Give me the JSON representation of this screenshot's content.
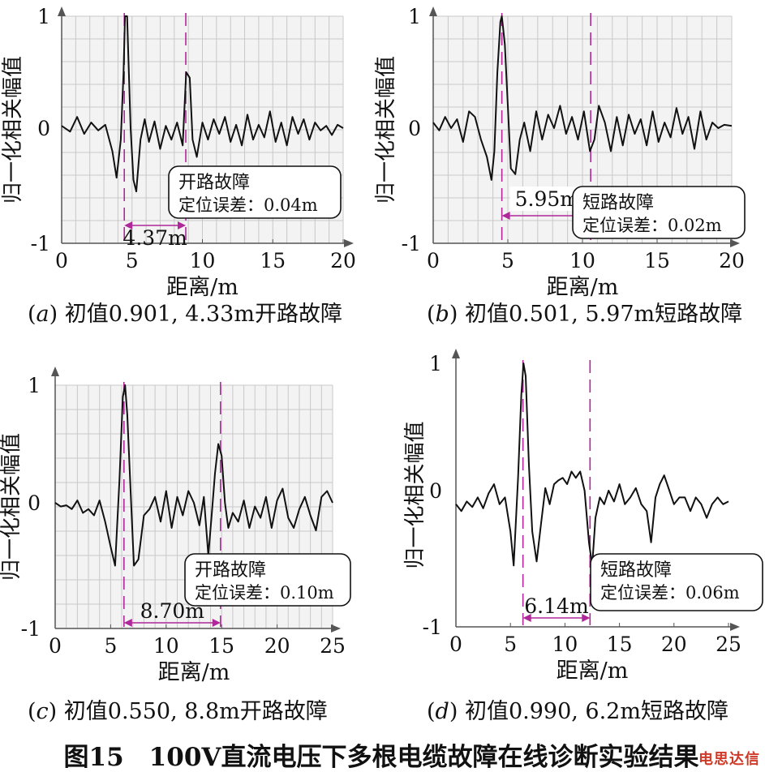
{
  "figure_caption": "图15　100V直流电压下多根电缆故障在线诊断实验结果",
  "watermark": "电思达信",
  "colors": {
    "grid": "#c8c8c8",
    "panel_bg": "#f3f3f3",
    "signal": "#111111",
    "marker": "#b0279a",
    "axis": "#555555"
  },
  "chart_data": [
    {
      "type": "line",
      "panel": "a",
      "caption_letter": "a",
      "caption_text": " 初值0.901, 4.33m开路故障",
      "ylabel": "归一化相关幅值",
      "xlabel": "距离/m",
      "xlim": [
        0,
        20
      ],
      "ylim": [
        -1,
        1
      ],
      "xticks": [
        0,
        5,
        10,
        15,
        20
      ],
      "yticks": [
        1,
        0,
        -1
      ],
      "grid": true,
      "markers": [
        4.45,
        8.82
      ],
      "distance_label": "4.37m",
      "distance_arrow": [
        4.45,
        8.82
      ],
      "annotation": {
        "title": "开路故障",
        "detail": "定位误差：0.04m"
      },
      "series": [
        {
          "x": [
            0,
            0.6,
            1.1,
            1.6,
            2.1,
            2.6,
            3.1,
            3.6,
            3.9,
            4.2,
            4.4,
            4.5,
            4.65,
            4.75,
            4.9,
            5.1,
            5.3,
            5.6,
            5.9,
            6.2,
            6.6,
            7.0,
            7.4,
            7.8,
            8.2,
            8.6,
            8.85,
            9.1,
            9.3,
            9.6,
            10.0,
            10.4,
            10.8,
            11.2,
            11.6,
            12.0,
            12.4,
            12.8,
            13.2,
            13.6,
            14.0,
            14.4,
            14.8,
            15.2,
            15.6,
            16.0,
            16.4,
            16.8,
            17.2,
            17.6,
            18.0,
            18.4,
            18.8,
            19.2,
            19.6,
            20.0
          ],
          "y": [
            0.02,
            -0.03,
            0.1,
            -0.05,
            0.05,
            -0.02,
            0.03,
            -0.2,
            -0.43,
            -0.1,
            0.5,
            1.0,
            1.0,
            0.6,
            0.0,
            -0.45,
            -0.55,
            -0.1,
            0.08,
            -0.12,
            0.06,
            -0.18,
            0.02,
            -0.1,
            0.05,
            -0.15,
            0.5,
            0.45,
            -0.1,
            -0.25,
            0.05,
            -0.1,
            0.08,
            -0.05,
            0.1,
            -0.12,
            0.03,
            -0.15,
            0.12,
            -0.1,
            0.03,
            -0.08,
            0.15,
            -0.12,
            0.05,
            -0.15,
            0.1,
            -0.05,
            0.08,
            -0.1,
            0.05,
            -0.02,
            0.02,
            -0.06,
            0.03,
            0.0
          ]
        }
      ]
    },
    {
      "type": "line",
      "panel": "b",
      "caption_letter": "b",
      "caption_text": " 初值0.501, 5.97m短路故障",
      "ylabel": "归一化相关幅值",
      "xlabel": "距离/m",
      "xlim": [
        0,
        20
      ],
      "ylim": [
        -1,
        1
      ],
      "xticks": [
        0,
        5,
        10,
        15,
        20
      ],
      "yticks": [
        1,
        0,
        -1
      ],
      "grid": true,
      "markers": [
        4.6,
        10.55
      ],
      "distance_label": "5.95m",
      "distance_arrow": [
        4.6,
        10.55
      ],
      "annotation": {
        "title": "短路故障",
        "detail": "定位误差：0.02m"
      },
      "series": [
        {
          "x": [
            0,
            0.4,
            0.8,
            1.2,
            1.6,
            2.0,
            2.4,
            2.8,
            3.2,
            3.6,
            3.9,
            4.1,
            4.3,
            4.5,
            4.6,
            4.8,
            5.0,
            5.2,
            5.5,
            5.8,
            6.1,
            6.5,
            6.9,
            7.3,
            7.7,
            8.1,
            8.5,
            8.9,
            9.3,
            9.7,
            10.1,
            10.5,
            10.8,
            11.1,
            11.5,
            11.9,
            12.3,
            12.7,
            13.1,
            13.5,
            13.9,
            14.3,
            14.7,
            15.1,
            15.5,
            15.9,
            16.3,
            16.7,
            17.1,
            17.5,
            17.9,
            18.3,
            18.7,
            19.1,
            19.5,
            20.0
          ],
          "y": [
            0.05,
            -0.02,
            0.1,
            0.0,
            0.08,
            -0.12,
            0.15,
            0.1,
            -0.1,
            -0.25,
            -0.45,
            -0.2,
            0.5,
            0.95,
            1.0,
            0.75,
            0.2,
            -0.35,
            -0.4,
            -0.1,
            0.05,
            -0.2,
            0.15,
            -0.1,
            0.12,
            0.0,
            0.2,
            -0.05,
            0.1,
            -0.1,
            0.15,
            -0.2,
            -0.1,
            0.2,
            0.05,
            -0.2,
            0.1,
            -0.15,
            0.12,
            -0.05,
            0.08,
            -0.15,
            0.15,
            -0.12,
            0.05,
            -0.08,
            0.18,
            -0.05,
            0.1,
            -0.18,
            0.15,
            -0.1,
            0.05,
            0.0,
            0.03,
            0.02
          ]
        }
      ]
    },
    {
      "type": "line",
      "panel": "c",
      "caption_letter": "c",
      "caption_text": " 初值0.550, 8.8m开路故障",
      "ylabel": "归一化相关幅值",
      "xlabel": "距离/m",
      "xlim": [
        0,
        25
      ],
      "ylim": [
        -1,
        1
      ],
      "xticks": [
        0,
        5,
        10,
        15,
        20,
        25
      ],
      "yticks": [
        1,
        0,
        -1
      ],
      "grid": true,
      "markers": [
        6.2,
        14.9
      ],
      "distance_label": "8.70m",
      "distance_arrow": [
        6.2,
        14.9
      ],
      "annotation": {
        "title": "开路故障",
        "detail": "定位误差：0.10m"
      },
      "series": [
        {
          "x": [
            0,
            0.5,
            1.0,
            1.5,
            2.0,
            2.5,
            3.0,
            3.5,
            4.0,
            4.5,
            5.0,
            5.4,
            5.8,
            6.1,
            6.3,
            6.5,
            6.8,
            7.1,
            7.5,
            8.0,
            8.5,
            9.0,
            9.5,
            10.0,
            10.5,
            11.0,
            11.5,
            12.0,
            12.5,
            13.0,
            13.4,
            13.8,
            14.1,
            14.4,
            14.7,
            15.0,
            15.3,
            15.6,
            16.0,
            16.5,
            17.0,
            17.5,
            18.0,
            18.5,
            19.0,
            19.5,
            20.0,
            20.5,
            21.0,
            21.5,
            22.0,
            22.5,
            23.0,
            23.5,
            24.0,
            24.5,
            25.0
          ],
          "y": [
            0.0,
            -0.03,
            -0.02,
            -0.05,
            0.02,
            -0.08,
            -0.05,
            -0.1,
            0.02,
            -0.15,
            -0.35,
            -0.5,
            0.2,
            0.9,
            1.0,
            0.75,
            0.1,
            -0.5,
            -0.45,
            -0.1,
            -0.05,
            0.05,
            -0.15,
            0.1,
            -0.2,
            0.05,
            -0.1,
            0.1,
            0.0,
            -0.18,
            0.05,
            -0.42,
            -0.1,
            0.25,
            0.5,
            0.4,
            0.0,
            -0.2,
            -0.08,
            -0.15,
            0.02,
            -0.2,
            -0.03,
            -0.12,
            0.05,
            -0.2,
            0.02,
            0.12,
            -0.12,
            -0.2,
            -0.05,
            0.05,
            -0.1,
            -0.22,
            0.05,
            0.1,
            0.0
          ]
        }
      ]
    },
    {
      "type": "line",
      "panel": "d",
      "caption_letter": "d",
      "caption_text": " 初值0.990, 6.2m短路故障",
      "ylabel": "归一化相关幅值",
      "xlabel": "距离/m",
      "xlim": [
        0,
        25
      ],
      "ylim": [
        -1,
        1
      ],
      "xticks": [
        0,
        5,
        10,
        15,
        20,
        25
      ],
      "yticks": [
        1,
        0,
        -1
      ],
      "grid": false,
      "markers": [
        6.15,
        12.3
      ],
      "distance_label": "6.14m",
      "distance_arrow": [
        6.15,
        12.3
      ],
      "annotation": {
        "title": "短路故障",
        "detail": "定位误差：0.06m"
      },
      "series": [
        {
          "x": [
            0,
            0.5,
            1.0,
            1.5,
            2.0,
            2.5,
            3.0,
            3.5,
            4.0,
            4.5,
            5.0,
            5.3,
            5.7,
            6.0,
            6.2,
            6.4,
            6.7,
            7.0,
            7.4,
            7.8,
            8.2,
            8.6,
            9.0,
            9.4,
            9.8,
            10.2,
            10.6,
            11.0,
            11.4,
            11.8,
            12.2,
            12.5,
            12.8,
            13.2,
            13.6,
            14.0,
            14.5,
            15.0,
            15.5,
            16.0,
            16.5,
            17.0,
            17.5,
            17.9,
            18.3,
            18.7,
            19.1,
            19.5,
            20.0,
            20.5,
            21.0,
            21.5,
            22.0,
            22.5,
            23.0,
            23.5,
            24.0,
            24.5,
            25.0
          ],
          "y": [
            -0.1,
            -0.15,
            -0.08,
            -0.12,
            -0.05,
            -0.13,
            -0.02,
            0.05,
            -0.1,
            -0.05,
            -0.3,
            -0.55,
            0.1,
            0.75,
            1.0,
            0.9,
            0.2,
            -0.3,
            -0.52,
            -0.25,
            0.02,
            -0.1,
            0.05,
            0.08,
            0.1,
            0.05,
            0.15,
            0.1,
            0.15,
            0.0,
            -0.38,
            -0.55,
            -0.2,
            -0.05,
            -0.1,
            0.0,
            -0.08,
            0.05,
            -0.1,
            -0.05,
            0.02,
            -0.1,
            -0.15,
            -0.38,
            -0.05,
            0.05,
            0.12,
            0.02,
            -0.1,
            -0.05,
            -0.05,
            -0.15,
            -0.05,
            -0.1,
            -0.2,
            -0.1,
            -0.05,
            -0.1,
            -0.08
          ]
        }
      ]
    }
  ]
}
